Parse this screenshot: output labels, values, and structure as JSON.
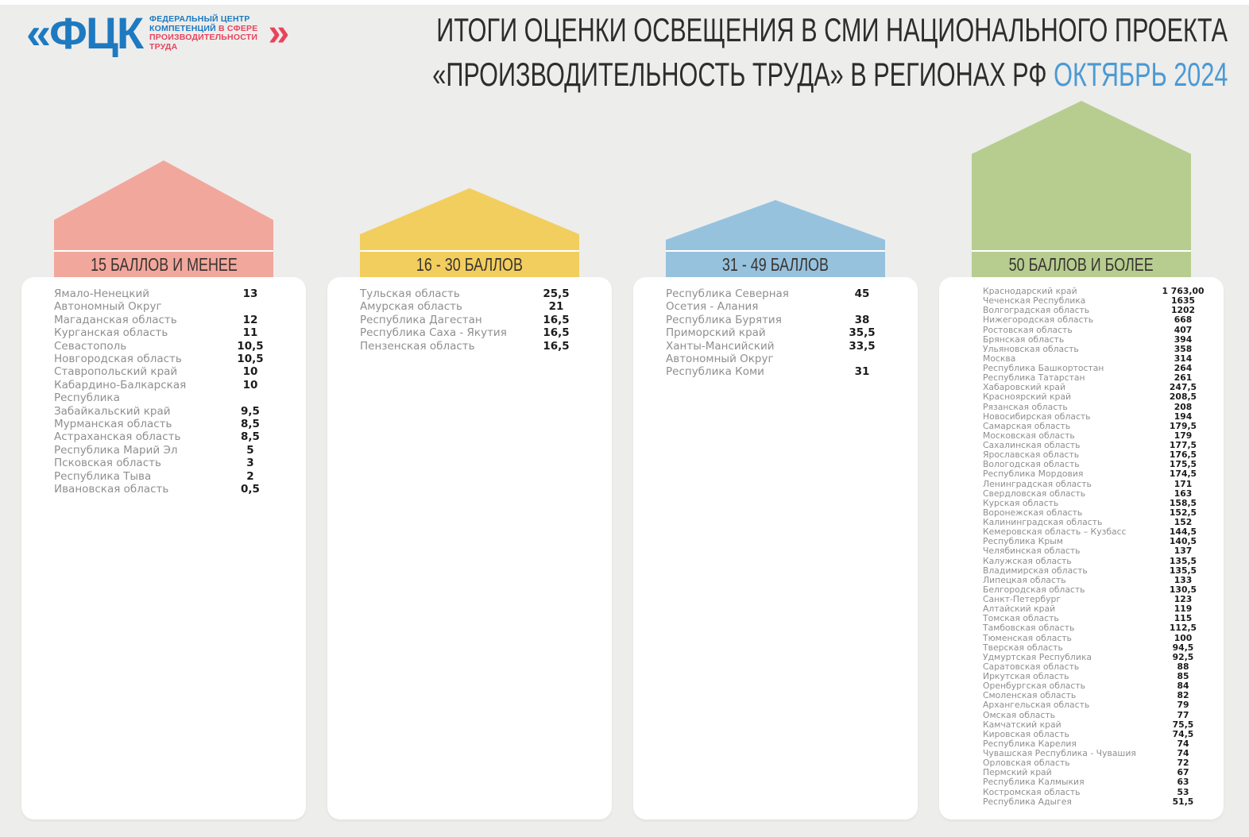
{
  "logo": {
    "mark": "«ФЦК",
    "closing_chevron": "»",
    "line1": "ФЕДЕРАЛЬНЫЙ ЦЕНТР",
    "line2_blue": "КОМПЕТЕНЦИЙ",
    "line2_red": " В СФЕРЕ",
    "line3": "ПРОИЗВОДИТЕЛЬНОСТИ",
    "line4": "ТРУДА",
    "blue": "#1e7ac0",
    "red": "#e8445c"
  },
  "title": {
    "line1": "ИТОГИ ОЦЕНКИ ОСВЕЩЕНИЯ В СМИ НАЦИОНАЛЬНОГО ПРОЕКТА",
    "line2": "«ПРОИЗВОДИТЕЛЬНОСТЬ ТРУДА» В РЕГИОНАХ РФ",
    "period": "ОКТЯБРЬ 2024",
    "accent_color": "#4a9ad4"
  },
  "chart_data": {
    "type": "table",
    "title": "ИТОГИ ОЦЕНКИ ОСВЕЩЕНИЯ В СМИ НАЦИОНАЛЬНОГО ПРОЕКТА «ПРОИЗВОДИТЕЛЬНОСТЬ ТРУДА» В РЕГИОНАХ РФ",
    "period": "ОКТЯБРЬ 2024",
    "legend_position": "column headers as house-shaped banners",
    "groups": [
      {
        "label": "15 БАЛЛОВ И МЕНЕЕ",
        "color": "#f2a79d",
        "house": {
          "total_height": 147,
          "roof_height": 75,
          "band_height": 34
        },
        "entries": [
          {
            "region": "Ямало-Ненецкий Автономный Округ",
            "score": "13"
          },
          {
            "region": "Магаданская область",
            "score": "12"
          },
          {
            "region": "Курганская область",
            "score": "11"
          },
          {
            "region": "Севастополь",
            "score": "10,5"
          },
          {
            "region": "Новгородская область",
            "score": "10,5"
          },
          {
            "region": "Ставропольский край",
            "score": "10"
          },
          {
            "region": "Кабардино-Балкарская Республика",
            "score": "10"
          },
          {
            "region": "Забайкальский край",
            "score": "9,5"
          },
          {
            "region": "Мурманская область",
            "score": "8,5"
          },
          {
            "region": "Астраханская область",
            "score": "8,5"
          },
          {
            "region": "Республика Марий Эл",
            "score": "5"
          },
          {
            "region": "Псковская область",
            "score": "3"
          },
          {
            "region": "Республика Тыва",
            "score": "2"
          },
          {
            "region": "Ивановская область",
            "score": "0,5"
          }
        ]
      },
      {
        "label": "16 - 30 БАЛЛОВ",
        "color": "#f2ce5e",
        "house": {
          "total_height": 112,
          "roof_height": 58,
          "band_height": 34
        },
        "entries": [
          {
            "region": "Тульская область",
            "score": "25,5"
          },
          {
            "region": "Амурская область",
            "score": "21"
          },
          {
            "region": "Республика Дагестан",
            "score": "16,5"
          },
          {
            "region": "Республика Саха - Якутия",
            "score": "16,5"
          },
          {
            "region": "Пензенская область",
            "score": "16,5"
          }
        ]
      },
      {
        "label": "31 - 49 БАЛЛОВ",
        "color": "#96c2de",
        "house": {
          "total_height": 97,
          "roof_height": 50,
          "band_height": 34
        },
        "entries": [
          {
            "region": "Республика Северная Осетия - Алания",
            "score": "45"
          },
          {
            "region": "Республика Бурятия",
            "score": "38"
          },
          {
            "region": "Приморский край",
            "score": "35,5"
          },
          {
            "region": "Ханты-Мансийский Автономный Округ",
            "score": "33,5"
          },
          {
            "region": "Республика Коми",
            "score": "31"
          }
        ]
      },
      {
        "label": "50 БАЛЛОВ И БОЛЕЕ",
        "color": "#b7cd90",
        "house": {
          "total_height": 222,
          "roof_height": 67,
          "band_height": 34
        },
        "entries": [
          {
            "region": "Краснодарский край",
            "score": "1 763,00"
          },
          {
            "region": "Чеченская Республика",
            "score": "1635"
          },
          {
            "region": "Волгоградская область",
            "score": "1202"
          },
          {
            "region": "Нижегородская область",
            "score": "668"
          },
          {
            "region": "Ростовская область",
            "score": "407"
          },
          {
            "region": "Брянская область",
            "score": "394"
          },
          {
            "region": "Ульяновская область",
            "score": "358"
          },
          {
            "region": "Москва",
            "score": "314"
          },
          {
            "region": "Республика Башкортостан",
            "score": "264"
          },
          {
            "region": "Республика Татарстан",
            "score": "261"
          },
          {
            "region": "Хабаровский край",
            "score": "247,5"
          },
          {
            "region": "Красноярский край",
            "score": "208,5"
          },
          {
            "region": "Рязанская область",
            "score": "208"
          },
          {
            "region": "Новосибирская область",
            "score": "194"
          },
          {
            "region": "Самарская область",
            "score": "179,5"
          },
          {
            "region": "Московская область",
            "score": "179"
          },
          {
            "region": "Сахалинская область",
            "score": "177,5"
          },
          {
            "region": "Ярославская область",
            "score": "176,5"
          },
          {
            "region": "Вологодская область",
            "score": "175,5"
          },
          {
            "region": "Республика Мордовия",
            "score": "174,5"
          },
          {
            "region": "Ленинградская область",
            "score": "171"
          },
          {
            "region": "Свердловская область",
            "score": "163"
          },
          {
            "region": "Курская область",
            "score": "158,5"
          },
          {
            "region": "Воронежская область",
            "score": "152,5"
          },
          {
            "region": "Калининградская область",
            "score": "152"
          },
          {
            "region": "Кемеровская область – Кузбасс",
            "score": "144,5"
          },
          {
            "region": "Республика Крым",
            "score": "140,5"
          },
          {
            "region": "Челябинская область",
            "score": "137"
          },
          {
            "region": "Калужская область",
            "score": "135,5"
          },
          {
            "region": "Владимирская область",
            "score": "135,5"
          },
          {
            "region": "Липецкая область",
            "score": "133"
          },
          {
            "region": "Белгородская область",
            "score": "130,5"
          },
          {
            "region": "Санкт-Петербург",
            "score": "123"
          },
          {
            "region": "Алтайский край",
            "score": "119"
          },
          {
            "region": "Томская область",
            "score": "115"
          },
          {
            "region": "Тамбовская область",
            "score": "112,5"
          },
          {
            "region": "Тюменская область",
            "score": "100"
          },
          {
            "region": "Тверская область",
            "score": "94,5"
          },
          {
            "region": "Удмуртская Республика",
            "score": "92,5"
          },
          {
            "region": "Саратовская область",
            "score": "88"
          },
          {
            "region": "Иркутская область",
            "score": "85"
          },
          {
            "region": "Оренбургская область",
            "score": "84"
          },
          {
            "region": "Смоленская область",
            "score": "82"
          },
          {
            "region": "Архангельская область",
            "score": "79"
          },
          {
            "region": "Омская область",
            "score": "77"
          },
          {
            "region": "Камчатский край",
            "score": "75,5"
          },
          {
            "region": "Кировская область",
            "score": "74,5"
          },
          {
            "region": "Республика Карелия",
            "score": "74"
          },
          {
            "region": "Чувашская Республика - Чувашия",
            "score": "74"
          },
          {
            "region": "Орловская область",
            "score": "72"
          },
          {
            "region": "Пермский край",
            "score": "67"
          },
          {
            "region": "Республика Калмыкия",
            "score": "63"
          },
          {
            "region": "Костромская область",
            "score": "53"
          },
          {
            "region": "Республика Адыгея",
            "score": "51,5"
          }
        ]
      }
    ]
  }
}
